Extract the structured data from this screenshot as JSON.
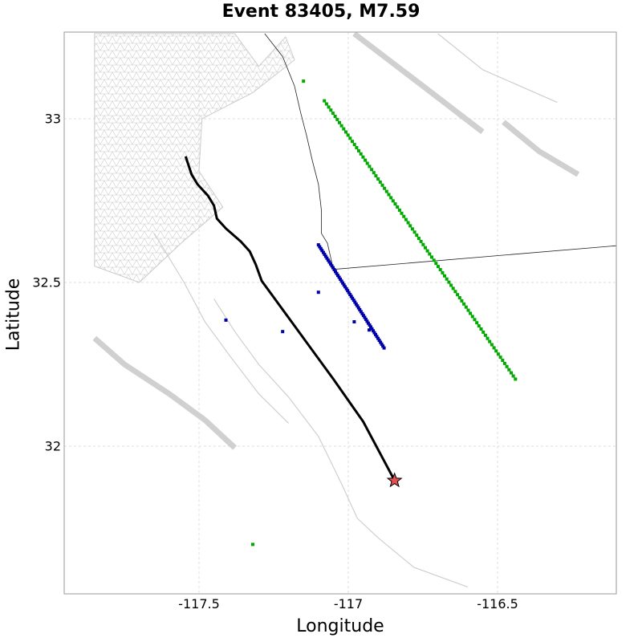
{
  "title": "Event 83405, M7.59",
  "xlabel": "Longitude",
  "ylabel": "Latitude",
  "xticks": [
    {
      "value": -117.5,
      "label": "-117.5"
    },
    {
      "value": -117.0,
      "label": "-117"
    },
    {
      "value": -116.5,
      "label": "-116.5"
    }
  ],
  "yticks": [
    {
      "value": 32.0,
      "label": "32"
    },
    {
      "value": 32.5,
      "label": "32.5"
    },
    {
      "value": 33.0,
      "label": "33"
    }
  ],
  "xlim": [
    -117.84,
    -116.84
  ],
  "ylim": [
    31.55,
    33.26
  ],
  "grid": true,
  "colors": {
    "rupture": "#000000",
    "green_stations": "#00aa00",
    "blue_stations": "#0000aa",
    "mesh": "#cccccc",
    "faults": "#d0d0d0",
    "coastline": "#222222",
    "epicenter": "#e05050"
  },
  "chart_data": {
    "type": "map",
    "epicenter": {
      "lon": -116.845,
      "lat": 31.895
    },
    "rupture_trace": [
      [
        -117.545,
        32.885
      ],
      [
        -117.525,
        32.83
      ],
      [
        -117.505,
        32.8
      ],
      [
        -117.47,
        32.765
      ],
      [
        -117.45,
        32.735
      ],
      [
        -117.44,
        32.695
      ],
      [
        -117.41,
        32.665
      ],
      [
        -117.36,
        32.625
      ],
      [
        -117.33,
        32.595
      ],
      [
        -117.31,
        32.555
      ],
      [
        -117.29,
        32.505
      ],
      [
        -117.25,
        32.455
      ],
      [
        -117.15,
        32.33
      ],
      [
        -117.05,
        32.205
      ],
      [
        -116.95,
        32.075
      ],
      [
        -116.845,
        31.895
      ]
    ],
    "green_stations": {
      "line_start": [
        -117.08,
        33.055
      ],
      "line_end": [
        -116.44,
        32.205
      ],
      "count": 90,
      "extra": [
        [
          -117.15,
          33.115
        ],
        [
          -117.32,
          31.7
        ]
      ]
    },
    "blue_stations": {
      "line_start": [
        -117.1,
        32.615
      ],
      "line_end": [
        -116.88,
        32.3
      ],
      "count": 55,
      "extra": [
        [
          -117.41,
          32.385
        ],
        [
          -117.22,
          32.35
        ],
        [
          -117.1,
          32.47
        ],
        [
          -116.98,
          32.38
        ],
        [
          -116.93,
          32.355
        ]
      ]
    },
    "faults": [
      [
        [
          -117.85,
          32.33
        ],
        [
          -117.75,
          32.25
        ],
        [
          -117.6,
          32.16
        ],
        [
          -117.48,
          32.08
        ],
        [
          -117.38,
          31.995
        ]
      ],
      [
        [
          -116.98,
          33.26
        ],
        [
          -116.75,
          33.1
        ],
        [
          -116.55,
          32.96
        ]
      ],
      [
        [
          -116.48,
          32.99
        ],
        [
          -116.36,
          32.9
        ],
        [
          -116.23,
          32.83
        ]
      ]
    ],
    "thin_faults": [
      [
        [
          -117.45,
          32.45
        ],
        [
          -117.38,
          32.35
        ],
        [
          -117.3,
          32.25
        ],
        [
          -117.2,
          32.15
        ],
        [
          -117.1,
          32.03
        ],
        [
          -117.02,
          31.88
        ],
        [
          -116.97,
          31.78
        ],
        [
          -116.9,
          31.72
        ],
        [
          -116.78,
          31.63
        ],
        [
          -116.6,
          31.57
        ]
      ],
      [
        [
          -117.65,
          32.65
        ],
        [
          -117.55,
          32.5
        ],
        [
          -117.48,
          32.38
        ],
        [
          -117.4,
          32.28
        ],
        [
          -117.3,
          32.16
        ],
        [
          -117.2,
          32.07
        ]
      ],
      [
        [
          -116.7,
          33.26
        ],
        [
          -116.55,
          33.15
        ],
        [
          -116.3,
          33.05
        ]
      ]
    ],
    "coastline": [
      [
        -117.28,
        33.26
      ],
      [
        -117.22,
        33.19
      ],
      [
        -117.18,
        33.1
      ],
      [
        -117.16,
        33.02
      ],
      [
        -117.14,
        32.95
      ],
      [
        -117.12,
        32.87
      ],
      [
        -117.1,
        32.8
      ],
      [
        -117.09,
        32.72
      ],
      [
        -117.09,
        32.65
      ],
      [
        -117.07,
        32.62
      ],
      [
        -117.05,
        32.54
      ],
      [
        -116.0,
        32.62
      ]
    ],
    "mesh_polygon": [
      [
        -117.85,
        33.26
      ],
      [
        -117.38,
        33.26
      ],
      [
        -117.3,
        33.16
      ],
      [
        -117.21,
        33.25
      ],
      [
        -117.18,
        33.18
      ],
      [
        -117.32,
        33.08
      ],
      [
        -117.49,
        33.0
      ],
      [
        -117.5,
        32.84
      ],
      [
        -117.42,
        32.73
      ],
      [
        -117.56,
        32.62
      ],
      [
        -117.7,
        32.5
      ],
      [
        -117.85,
        32.55
      ]
    ]
  }
}
